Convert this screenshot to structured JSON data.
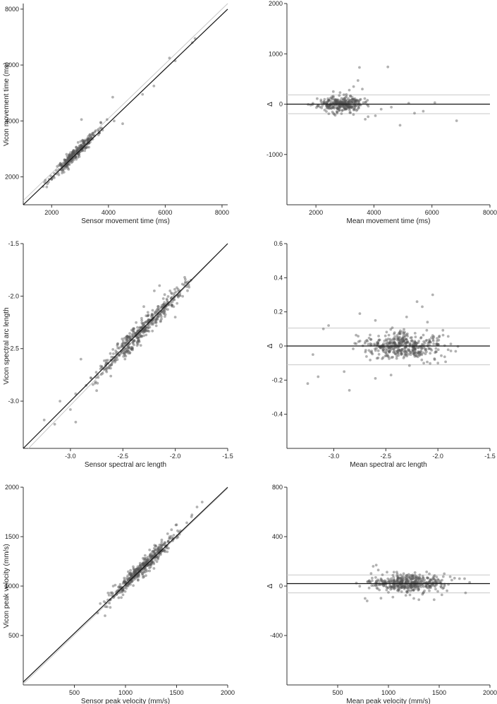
{
  "chart_data": [
    {
      "type": "scatter",
      "xlabel": "Sensor movement time (ms)",
      "ylabel": "Vicon movement time (ms)",
      "xlim": [
        1000,
        8200
      ],
      "ylim": [
        1000,
        8200
      ],
      "xticks": [
        2000,
        4000,
        6000,
        8000
      ],
      "yticks": [
        2000,
        4000,
        6000,
        8000
      ],
      "xtick_labels": [
        "2000",
        "4000",
        "6000",
        "8000"
      ],
      "ytick_labels": [
        "2000",
        "4000",
        "6000",
        "8000"
      ],
      "identity_line": [
        [
          1000,
          1000
        ],
        [
          8200,
          8000
        ]
      ],
      "reference_line": [
        [
          1000,
          1150
        ],
        [
          8200,
          8200
        ]
      ],
      "cloud": {
        "n": 300,
        "x_center": 2850,
        "x_spread": 380,
        "slope": 1.0,
        "offset": 0,
        "noise": 110,
        "seed": 11
      },
      "points": [
        [
          1700,
          1650
        ],
        [
          1750,
          1800
        ],
        [
          1850,
          1750
        ],
        [
          3050,
          4050
        ],
        [
          3550,
          3650
        ],
        [
          3650,
          3500
        ],
        [
          3950,
          4050
        ],
        [
          4150,
          4850
        ],
        [
          4200,
          4000
        ],
        [
          4500,
          3900
        ],
        [
          5200,
          4950
        ],
        [
          5600,
          5250
        ],
        [
          6150,
          6250
        ],
        [
          6350,
          6150
        ],
        [
          7050,
          6950
        ],
        [
          6950,
          6800
        ]
      ],
      "grid": false
    },
    {
      "type": "scatter",
      "xlabel": "Mean movement time (ms)",
      "ylabel": "Δ",
      "xlim": [
        1000,
        8000
      ],
      "ylim": [
        -2000,
        2000
      ],
      "xticks": [
        2000,
        4000,
        6000,
        8000
      ],
      "yticks": [
        -1000,
        0,
        1000,
        2000
      ],
      "xtick_labels": [
        "2000",
        "4000",
        "6000",
        "8000"
      ],
      "ytick_labels": [
        "-1000",
        "0",
        "1000",
        "2000"
      ],
      "mean_line": 0,
      "limits": [
        185,
        -190
      ],
      "cloud": {
        "n": 300,
        "x_center": 2850,
        "x_spread": 380,
        "slope": 0,
        "offset": 0,
        "noise": 75,
        "seed": 23
      },
      "points": [
        [
          3500,
          730
        ],
        [
          4480,
          740
        ],
        [
          3450,
          470
        ],
        [
          3300,
          350
        ],
        [
          3150,
          280
        ],
        [
          3600,
          300
        ],
        [
          2600,
          250
        ],
        [
          3700,
          -300
        ],
        [
          4050,
          -230
        ],
        [
          4900,
          -420
        ],
        [
          5400,
          -180
        ],
        [
          5700,
          -140
        ],
        [
          6850,
          -330
        ],
        [
          6100,
          30
        ],
        [
          5200,
          20
        ],
        [
          4600,
          -60
        ],
        [
          4250,
          -100
        ],
        [
          3800,
          -250
        ]
      ],
      "grid": false
    },
    {
      "type": "scatter",
      "xlabel": "Sensor spectral arc length",
      "ylabel": "Vicon spectral arc length",
      "xlim": [
        -3.45,
        -1.5
      ],
      "ylim": [
        -3.45,
        -1.5
      ],
      "xticks": [
        -3.0,
        -2.5,
        -2.0,
        -1.5
      ],
      "yticks": [
        -3.0,
        -2.5,
        -2.0,
        -1.5
      ],
      "xtick_labels": [
        "-3.0",
        "-2.5",
        "-2.0",
        "-1.5"
      ],
      "ytick_labels": [
        "-3.0",
        "-2.5",
        "-2.0",
        "-1.5"
      ],
      "identity_line": [
        [
          -3.45,
          -3.45
        ],
        [
          -1.5,
          -1.5
        ]
      ],
      "reference_line": [
        [
          -3.4,
          -3.45
        ],
        [
          -1.5,
          -1.5
        ]
      ],
      "cloud": {
        "n": 420,
        "x_center": -2.33,
        "x_spread": 0.2,
        "slope": 1.0,
        "offset": 0,
        "noise": 0.05,
        "seed": 37
      },
      "points": [
        [
          -3.15,
          -3.22
        ],
        [
          -3.25,
          -3.18
        ],
        [
          -3.0,
          -3.08
        ],
        [
          -2.95,
          -3.2
        ],
        [
          -3.1,
          -3.0
        ],
        [
          -2.85,
          -2.85
        ],
        [
          -2.75,
          -2.9
        ],
        [
          -2.9,
          -2.6
        ],
        [
          -2.15,
          -1.9
        ],
        [
          -2.05,
          -1.95
        ],
        [
          -2.2,
          -1.95
        ],
        [
          -2.3,
          -2.1
        ],
        [
          -2.0,
          -2.2
        ]
      ],
      "grid": false
    },
    {
      "type": "scatter",
      "xlabel": "Mean spectral arc length",
      "ylabel": "Δ",
      "xlim": [
        -3.45,
        -1.5
      ],
      "ylim": [
        -0.6,
        0.6
      ],
      "xticks": [
        -3.0,
        -2.5,
        -2.0,
        -1.5
      ],
      "yticks": [
        -0.4,
        -0.2,
        0,
        0.2,
        0.4,
        0.6
      ],
      "xtick_labels": [
        "-3.0",
        "-2.5",
        "-2.0",
        "-1.5"
      ],
      "ytick_labels": [
        "-0.4",
        "-0.2",
        "0",
        "0.2",
        "0.4",
        "0.6"
      ],
      "mean_line": 0,
      "limits": [
        0.105,
        -0.11
      ],
      "cloud": {
        "n": 420,
        "x_center": -2.33,
        "x_spread": 0.2,
        "slope": 0,
        "offset": 0,
        "noise": 0.04,
        "seed": 41
      },
      "points": [
        [
          -3.25,
          -0.22
        ],
        [
          -3.15,
          -0.18
        ],
        [
          -3.05,
          0.12
        ],
        [
          -3.1,
          0.1
        ],
        [
          -2.85,
          -0.26
        ],
        [
          -2.75,
          0.19
        ],
        [
          -2.6,
          0.15
        ],
        [
          -2.2,
          0.26
        ],
        [
          -2.15,
          0.23
        ],
        [
          -2.05,
          0.3
        ],
        [
          -2.1,
          0.14
        ],
        [
          -2.3,
          0.17
        ],
        [
          -2.45,
          -0.17
        ],
        [
          -2.6,
          -0.19
        ],
        [
          -2.9,
          -0.15
        ],
        [
          -2.0,
          -0.1
        ],
        [
          -3.2,
          -0.05
        ]
      ],
      "grid": false
    },
    {
      "type": "scatter",
      "xlabel": "Sensor peak velocity (mm/s)",
      "ylabel": "Vicon peak velocity (mm/s)",
      "xlim": [
        0,
        2000
      ],
      "ylim": [
        0,
        2000
      ],
      "xticks": [
        500,
        1000,
        1500,
        2000
      ],
      "yticks": [
        500,
        1000,
        1500,
        2000
      ],
      "xtick_labels": [
        "500",
        "1000",
        "1500",
        "2000"
      ],
      "ytick_labels": [
        "500",
        "1000",
        "1500",
        "2000"
      ],
      "identity_line": [
        [
          0,
          30
        ],
        [
          2000,
          2000
        ]
      ],
      "reference_line": [
        [
          0,
          10
        ],
        [
          2000,
          1990
        ]
      ],
      "cloud": {
        "n": 420,
        "x_center": 1180,
        "x_spread": 170,
        "slope": 1.0,
        "offset": 20,
        "noise": 40,
        "seed": 53
      },
      "points": [
        [
          800,
          700
        ],
        [
          820,
          790
        ],
        [
          850,
          860
        ],
        [
          880,
          1000
        ],
        [
          900,
          1010
        ],
        [
          830,
          930
        ],
        [
          1750,
          1850
        ],
        [
          1700,
          1800
        ],
        [
          1650,
          1720
        ],
        [
          1600,
          1640
        ],
        [
          1500,
          1620
        ],
        [
          1450,
          1570
        ]
      ],
      "grid": false
    },
    {
      "type": "scatter",
      "xlabel": "Mean peak velocity (mm/s)",
      "ylabel": "Δ",
      "xlim": [
        0,
        2000
      ],
      "ylim": [
        -800,
        800
      ],
      "xticks": [
        500,
        1000,
        1500,
        2000
      ],
      "yticks": [
        -400,
        0,
        400,
        800
      ],
      "xtick_labels": [
        "500",
        "1000",
        "1500",
        "2000"
      ],
      "ytick_labels": [
        "-400",
        "0",
        "400",
        "800"
      ],
      "mean_line": 20,
      "limits": [
        90,
        -55
      ],
      "cloud": {
        "n": 420,
        "x_center": 1180,
        "x_spread": 170,
        "slope": 0,
        "offset": 20,
        "noise": 35,
        "seed": 67
      },
      "points": [
        [
          770,
          -100
        ],
        [
          790,
          -120
        ],
        [
          820,
          30
        ],
        [
          850,
          160
        ],
        [
          880,
          170
        ],
        [
          900,
          130
        ],
        [
          1700,
          60
        ],
        [
          1750,
          60
        ],
        [
          1800,
          30
        ],
        [
          1550,
          100
        ],
        [
          1450,
          -110
        ],
        [
          1300,
          -110
        ],
        [
          1250,
          -100
        ]
      ],
      "grid": false
    }
  ]
}
